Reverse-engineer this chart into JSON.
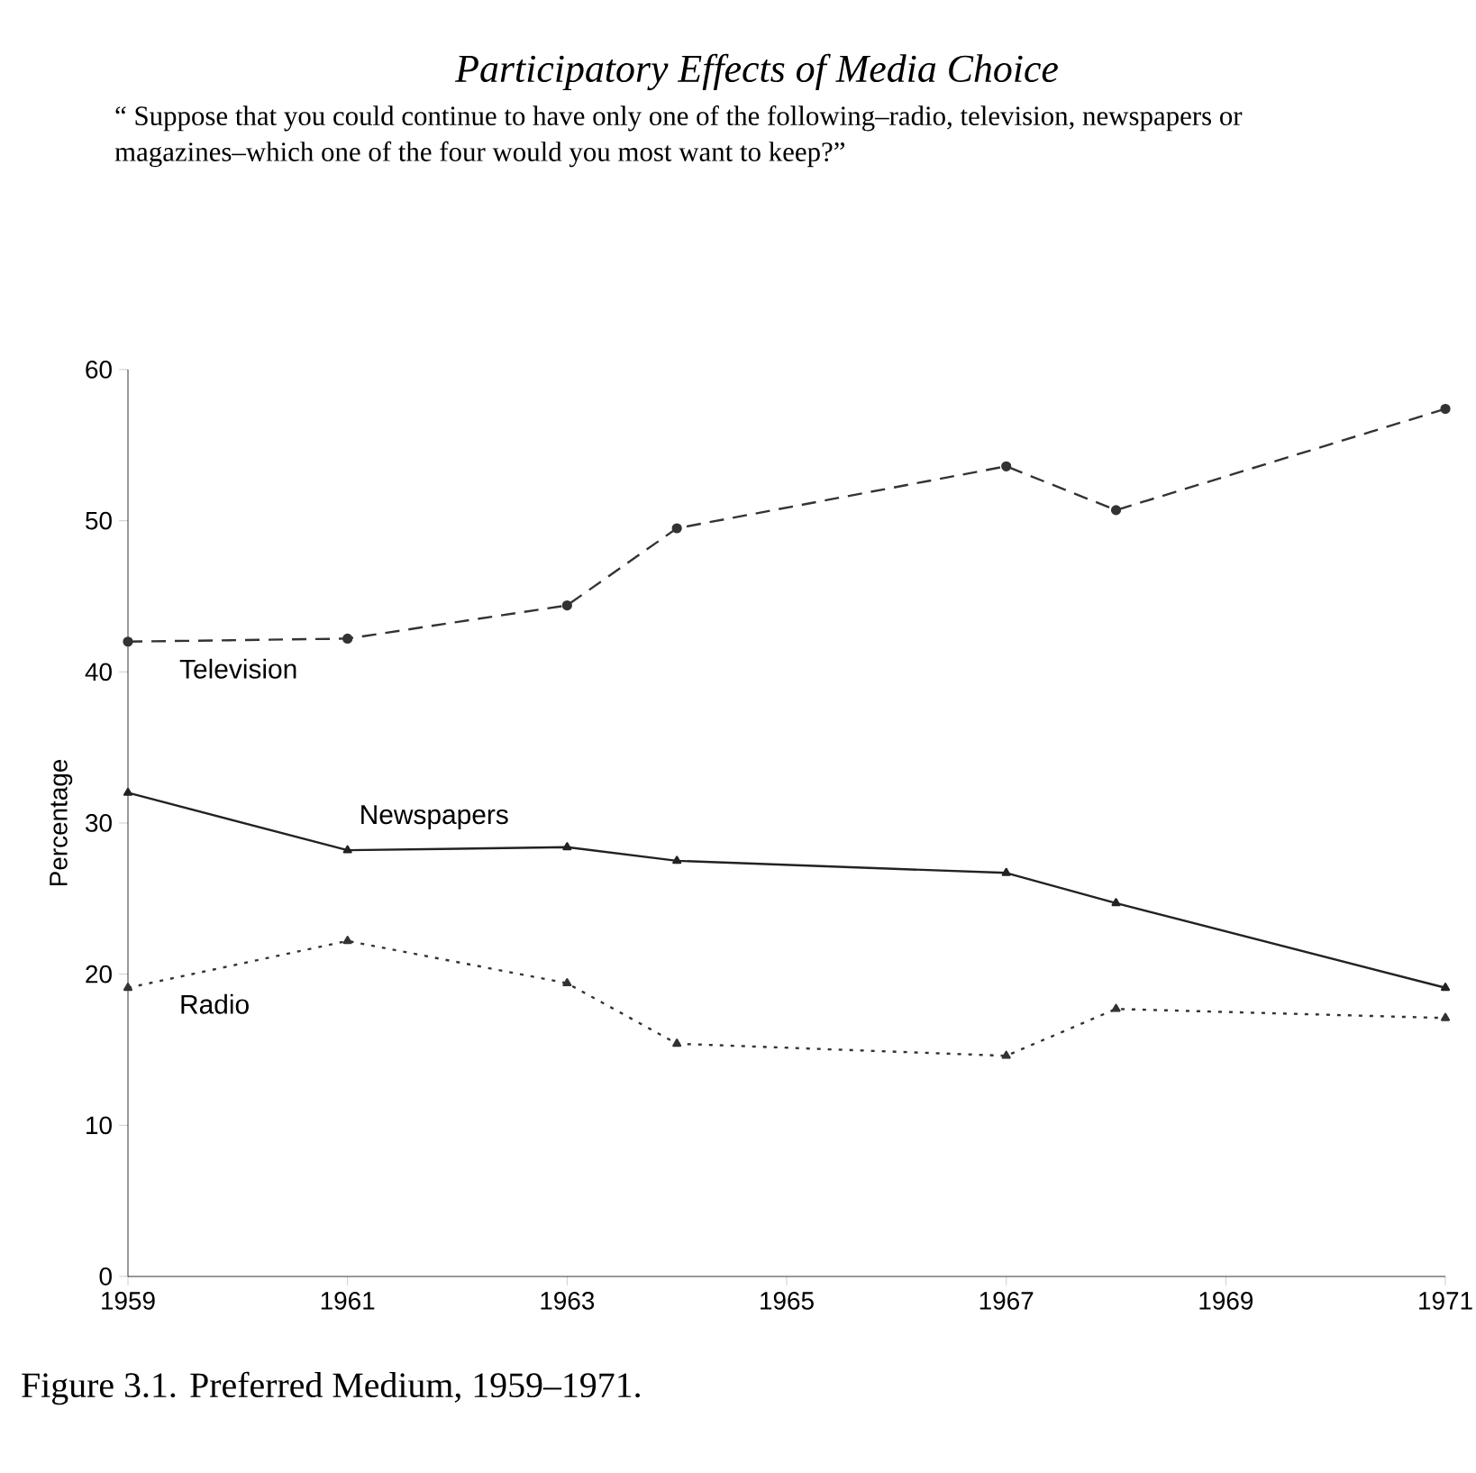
{
  "chart_data": {
    "type": "line",
    "title": "Participatory Effects of Media Choice",
    "subtitle": "“ Suppose that you could continue to have only one of the following–radio, television, newspapers or magazines–which one of the four would you most want to keep?”",
    "ylabel": "Percentage",
    "annotations": [
      "Figure 3.1. Preferred Medium, 1959–1971."
    ],
    "x": [
      1959,
      1961,
      1963,
      1964,
      1967,
      1968,
      1971
    ],
    "series": [
      {
        "name": "Television",
        "color": "#333333",
        "marker": "circle",
        "line_style": "dashed",
        "values": [
          42.0,
          42.2,
          44.4,
          49.5,
          53.6,
          50.7,
          57.4
        ]
      },
      {
        "name": "Newspapers",
        "color": "#222222",
        "marker": "triangle",
        "line_style": "solid",
        "values": [
          32.0,
          28.2,
          28.4,
          27.5,
          26.7,
          24.7,
          19.1
        ]
      },
      {
        "name": "Radio",
        "color": "#333333",
        "marker": "triangle",
        "line_style": "dotted",
        "values": [
          19.1,
          22.2,
          19.4,
          15.4,
          14.6,
          17.7,
          17.1
        ]
      }
    ],
    "xlim": [
      1959,
      1971
    ],
    "xticks": [
      1959,
      1961,
      1963,
      1965,
      1967,
      1969,
      1971
    ],
    "ylim": [
      0,
      60
    ],
    "yticks": [
      0,
      10,
      20,
      30,
      40,
      50,
      60
    ],
    "grid": false,
    "legend": false
  }
}
